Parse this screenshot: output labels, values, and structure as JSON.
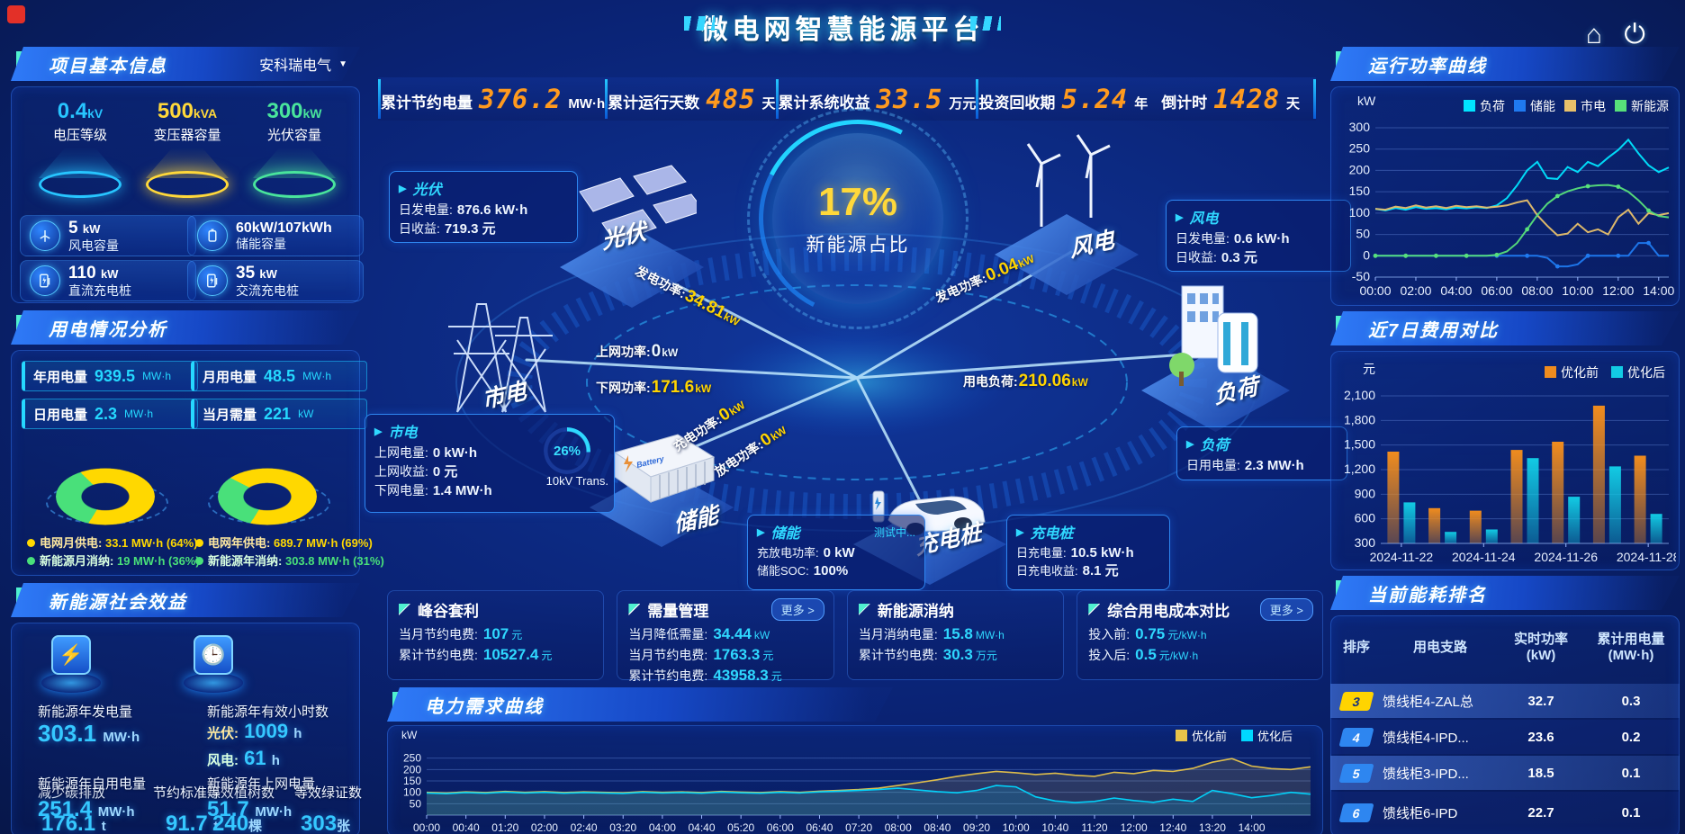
{
  "app": {
    "title": "微电网智慧能源平台"
  },
  "topbar": {
    "stats": [
      {
        "label": "累计节约电量",
        "value": "376.2",
        "unit": "MW·h"
      },
      {
        "label": "累计运行天数",
        "value": "485",
        "unit": "天"
      },
      {
        "label": "累计系统收益",
        "value": "33.5",
        "unit": "万元"
      },
      {
        "label": "投资回收期",
        "value": "5.24",
        "unit": "年"
      },
      {
        "label": "倒计时",
        "value": "1428",
        "unit": "天"
      }
    ]
  },
  "left": {
    "project": {
      "title": "项目基本信息",
      "company": "安科瑞电气",
      "spotlights": [
        {
          "value": "0.4",
          "unit": "kV",
          "label": "电压等级",
          "color": "#27c5ff"
        },
        {
          "value": "500",
          "unit": "kVA",
          "label": "变压器容量",
          "color": "#ffd83a"
        },
        {
          "value": "300",
          "unit": "kW",
          "label": "光伏容量",
          "color": "#49e49c"
        }
      ],
      "cards": [
        {
          "value": "5",
          "unit": "kW",
          "label": "风电容量",
          "icon": "wind-icon"
        },
        {
          "value": "60kW/107kWh",
          "unit": "",
          "label": "储能容量",
          "icon": "battery-icon"
        },
        {
          "value": "110",
          "unit": "kW",
          "label": "直流充电桩",
          "icon": "dc-charger-icon"
        },
        {
          "value": "35",
          "unit": "kW",
          "label": "交流充电桩",
          "icon": "ac-charger-icon"
        }
      ]
    },
    "usage": {
      "title": "用电情况分析",
      "stats": [
        {
          "label": "年用电量",
          "value": "939.5",
          "unit": "MW·h"
        },
        {
          "label": "月用电量",
          "value": "48.5",
          "unit": "MW·h"
        },
        {
          "label": "日用电量",
          "value": "2.3",
          "unit": "MW·h"
        },
        {
          "label": "当月需量",
          "value": "221",
          "unit": "kW"
        }
      ],
      "colors": {
        "grid": "#ffd800",
        "new_energy": "#49e07a"
      },
      "donuts": [
        {
          "grid_label": "电网月供电:",
          "grid_value": "33.1 MW·h (64%)",
          "grid_pct": 64,
          "new_label": "新能源月消纳:",
          "new_value": "19 MW·h (36%)",
          "new_pct": 36
        },
        {
          "grid_label": "电网年供电:",
          "grid_value": "689.7 MW·h (69%)",
          "grid_pct": 69,
          "new_label": "新能源年消纳:",
          "new_value": "303.8 MW·h (31%)",
          "new_pct": 31
        }
      ]
    },
    "benefits": {
      "title": "新能源社会效益",
      "gen": {
        "label": "新能源年发电量",
        "value": "303.1",
        "unit": "MW·h"
      },
      "hours": {
        "label": "新能源年有效小时数",
        "pv_label": "光伏:",
        "pv_value": "1009",
        "pv_unit": "h",
        "wind_label": "风电:",
        "wind_value": "61",
        "wind_unit": "h"
      },
      "self_use": {
        "label": "新能源年自用电量",
        "value": "251.4",
        "unit": "MW·h"
      },
      "carbon": {
        "label": "减少碳排放",
        "value": "176.1",
        "unit": "t"
      },
      "coal": {
        "label": "节约标准煤",
        "value": "91.7",
        "unit": "t"
      },
      "to_grid": {
        "label": "新能源年上网电量",
        "value": "51.7",
        "unit": "MW·h"
      },
      "trees": {
        "label": "等效植树数",
        "value": "240",
        "unit": "棵"
      },
      "certs": {
        "label": "等效绿证数",
        "value": "303",
        "unit": "张"
      }
    }
  },
  "center": {
    "circle": {
      "value": "17%",
      "label": "新能源占比"
    },
    "nodes": {
      "pv": "光伏",
      "wind": "风电",
      "grid": "市电",
      "load": "负荷",
      "storage": "储能",
      "ev": "充电桩"
    },
    "flows": {
      "pv_gen": {
        "label": "发电功率:",
        "value": "34.81",
        "unit": "kW"
      },
      "wind_gen": {
        "label": "发电功率:",
        "value": "0.04",
        "unit": "kW"
      },
      "to_grid": {
        "label": "上网功率:",
        "value": "0",
        "unit": "kW"
      },
      "from_grid": {
        "label": "下网功率:",
        "value": "171.6",
        "unit": "kW"
      },
      "load": {
        "label": "用电负荷:",
        "value": "210.06",
        "unit": "kW"
      },
      "charge": {
        "label": "充电功率:",
        "value": "0",
        "unit": "kW"
      },
      "discharge": {
        "label": "放电功率:",
        "value": "0",
        "unit": "kW"
      }
    },
    "transformer": {
      "pct": "26%",
      "label": "10kV Trans."
    },
    "boxes": {
      "pv": {
        "title": "光伏",
        "rows": [
          {
            "label": "日发电量:",
            "value": "876.6 kW·h"
          },
          {
            "label": "日收益:",
            "value": "719.3 元"
          }
        ]
      },
      "wind": {
        "title": "风电",
        "rows": [
          {
            "label": "日发电量:",
            "value": "0.6 kW·h"
          },
          {
            "label": "日收益:",
            "value": "0.3 元"
          }
        ]
      },
      "grid": {
        "title": "市电",
        "rows": [
          {
            "label": "上网电量:",
            "value": "0 kW·h"
          },
          {
            "label": "上网收益:",
            "value": "0 元"
          },
          {
            "label": "下网电量:",
            "value": "1.4 MW·h"
          }
        ]
      },
      "load": {
        "title": "负荷",
        "rows": [
          {
            "label": "日用电量:",
            "value": "2.3 MW·h"
          }
        ]
      },
      "storage": {
        "title": "储能",
        "status": "测试中...",
        "rows": [
          {
            "label": "充放电功率:",
            "value": "0 kW"
          },
          {
            "label": "储能SOC:",
            "value": "100%"
          }
        ]
      },
      "ev": {
        "title": "充电桩",
        "rows": [
          {
            "label": "日充电量:",
            "value": "10.5 kW·h"
          },
          {
            "label": "日充电收益:",
            "value": "8.1 元"
          }
        ]
      }
    },
    "kpis": [
      {
        "title": "峰谷套利",
        "more": "",
        "rows": [
          {
            "label": "当月节约电费:",
            "value": "107",
            "unit": "元"
          },
          {
            "label": "累计节约电费:",
            "value": "10527.4",
            "unit": "元"
          }
        ]
      },
      {
        "title": "需量管理",
        "more": "更多 >",
        "rows": [
          {
            "label": "当月降低需量:",
            "value": "34.44",
            "unit": "kW"
          },
          {
            "label": "当月节约电费:",
            "value": "1763.3",
            "unit": "元"
          },
          {
            "label": "累计节约电费:",
            "value": "43958.3",
            "unit": "元"
          }
        ]
      },
      {
        "title": "新能源消纳",
        "more": "",
        "rows": [
          {
            "label": "当月消纳电量:",
            "value": "15.8",
            "unit": "MW·h"
          },
          {
            "label": "累计节约电费:",
            "value": "30.3",
            "unit": "万元"
          }
        ]
      },
      {
        "title": "综合用电成本对比",
        "more": "更多 >",
        "rows": [
          {
            "label": "投入前:",
            "value": "0.75",
            "unit": "元/kW·h"
          },
          {
            "label": "投入后:",
            "value": "0.5",
            "unit": "元/kW·h"
          }
        ]
      }
    ]
  },
  "right": {
    "ranking": {
      "title": "当前能耗排名",
      "columns": [
        "排序",
        "用电支路",
        "实时功率\n(kW)",
        "累计用电量\n(MW·h)"
      ],
      "rows": [
        {
          "rank": "3",
          "branch": "馈线柜4-ZAL总",
          "power": "32.7",
          "energy": "0.3"
        },
        {
          "rank": "4",
          "branch": "馈线柜4-IPD...",
          "power": "23.6",
          "energy": "0.2"
        },
        {
          "rank": "5",
          "branch": "馈线柜3-IPD...",
          "power": "18.5",
          "energy": "0.1"
        },
        {
          "rank": "6",
          "branch": "馈线柜6-IPD",
          "power": "22.7",
          "energy": "0.1"
        }
      ]
    }
  },
  "chart_data": [
    {
      "type": "line",
      "title": "运行功率曲线",
      "ylabel": "kW",
      "ylim": [
        -50,
        300
      ],
      "yticks": [
        -50,
        0,
        50,
        100,
        150,
        200,
        250,
        300
      ],
      "xticks": [
        "00:00",
        "02:00",
        "04:00",
        "06:00",
        "08:00",
        "10:00",
        "12:00",
        "14:00"
      ],
      "x_step_hours": 0.5,
      "x_max_hours": 14.5,
      "grid": true,
      "legend_position": "top",
      "series": [
        {
          "name": "负荷",
          "color": "#00e5ff",
          "values": [
            110,
            106,
            112,
            108,
            114,
            110,
            112,
            109,
            113,
            111,
            114,
            112,
            118,
            135,
            165,
            200,
            220,
            182,
            180,
            208,
            196,
            220,
            210,
            230,
            248,
            272,
            240,
            212,
            196,
            207
          ]
        },
        {
          "name": "储能",
          "color": "#1f7af0",
          "values": [
            0,
            0,
            0,
            0,
            0,
            0,
            0,
            0,
            0,
            0,
            0,
            0,
            0,
            0,
            0,
            0,
            0,
            -5,
            -25,
            -25,
            -20,
            0,
            0,
            0,
            0,
            0,
            30,
            30,
            0,
            0
          ]
        },
        {
          "name": "市电",
          "color": "#e8c06a",
          "values": [
            110,
            108,
            115,
            112,
            118,
            113,
            116,
            112,
            117,
            114,
            116,
            113,
            115,
            118,
            125,
            130,
            95,
            70,
            48,
            52,
            75,
            55,
            62,
            50,
            90,
            108,
            75,
            100,
            95,
            100
          ]
        },
        {
          "name": "新能源",
          "color": "#57e07a",
          "values": [
            0,
            0,
            0,
            0,
            0,
            0,
            0,
            0,
            0,
            0,
            0,
            0,
            2,
            10,
            30,
            62,
            95,
            122,
            140,
            151,
            158,
            163,
            165,
            166,
            162,
            150,
            130,
            106,
            93,
            90
          ]
        }
      ]
    },
    {
      "type": "bar",
      "title": "近7日费用对比",
      "ylabel": "元",
      "ylim": [
        300,
        2100
      ],
      "yticks": [
        300,
        600,
        900,
        1200,
        1500,
        1800,
        2100
      ],
      "categories": [
        "2024-11-22",
        "2024-11-23",
        "2024-11-24",
        "2024-11-25",
        "2024-11-26",
        "2024-11-27",
        "2024-11-28"
      ],
      "xtick_show": [
        "2024-11-22",
        "2024-11-24",
        "2024-11-26",
        "2024-11-28"
      ],
      "grid": true,
      "legend_position": "top-right",
      "series": [
        {
          "name": "优化前",
          "color": "#f08c1e",
          "values": [
            1420,
            730,
            700,
            1440,
            1540,
            1980,
            1370
          ]
        },
        {
          "name": "优化后",
          "color": "#12cbe4",
          "values": [
            800,
            440,
            470,
            1340,
            870,
            1240,
            660
          ]
        }
      ]
    },
    {
      "type": "line",
      "title": "电力需求曲线",
      "ylabel": "kW",
      "ylim": [
        0,
        300
      ],
      "yticks": [
        50,
        100,
        150,
        200,
        250
      ],
      "xticks": [
        "00:00",
        "00:40",
        "01:20",
        "02:00",
        "02:40",
        "03:20",
        "04:00",
        "04:40",
        "05:20",
        "06:00",
        "06:40",
        "07:20",
        "08:00",
        "08:40",
        "09:20",
        "10:00",
        "10:40",
        "11:20",
        "12:00",
        "12:40",
        "13:20",
        "14:00"
      ],
      "x_step_hours": 0.3333,
      "x_max_hours": 15,
      "grid": true,
      "legend_position": "top-right",
      "series": [
        {
          "name": "优化前",
          "color": "#e8c44a",
          "values": [
            100,
            97,
            102,
            99,
            104,
            100,
            103,
            99,
            102,
            100,
            98,
            103,
            100,
            102,
            99,
            104,
            101,
            99,
            103,
            100,
            105,
            108,
            112,
            118,
            130,
            142,
            155,
            170,
            182,
            192,
            186,
            178,
            184,
            175,
            170,
            188,
            182,
            196,
            192,
            205,
            232,
            248,
            215,
            204,
            200,
            212
          ]
        },
        {
          "name": "优化后",
          "color": "#00d8ff",
          "values": [
            97,
            94,
            99,
            96,
            101,
            97,
            100,
            96,
            99,
            97,
            95,
            100,
            97,
            99,
            96,
            101,
            98,
            96,
            100,
            97,
            102,
            105,
            108,
            112,
            118,
            110,
            103,
            98,
            108,
            130,
            124,
            80,
            62,
            55,
            60,
            75,
            64,
            56,
            70,
            60,
            108,
            94,
            76,
            86,
            100,
            92
          ]
        }
      ]
    }
  ]
}
